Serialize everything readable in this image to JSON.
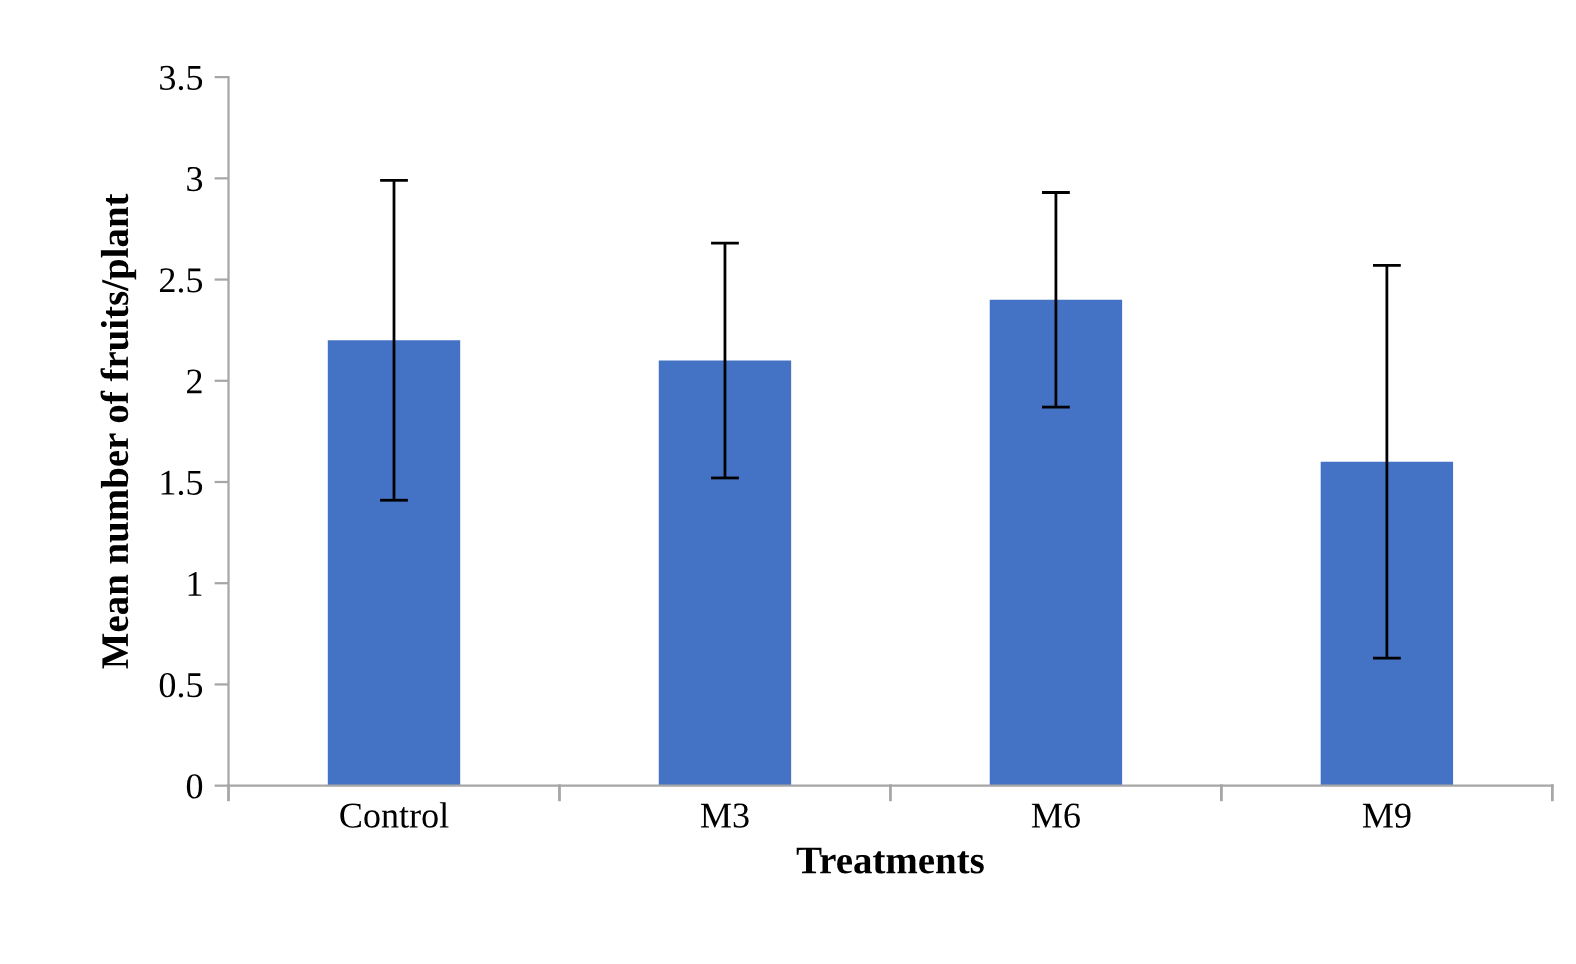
{
  "chart_data": {
    "type": "bar",
    "xlabel": "Treatments",
    "ylabel": "Mean number of fruits/plant",
    "categories": [
      "Control",
      "M3",
      "M6",
      "M9"
    ],
    "values": [
      2.2,
      2.1,
      2.4,
      1.6
    ],
    "errors": [
      0.79,
      0.58,
      0.53,
      0.97
    ],
    "color": "#4472c4",
    "ylim": [
      0,
      3.5
    ],
    "yticks": [
      0,
      0.5,
      1,
      1.5,
      2,
      2.5,
      3,
      3.5
    ],
    "grid": false,
    "legend": false
  }
}
